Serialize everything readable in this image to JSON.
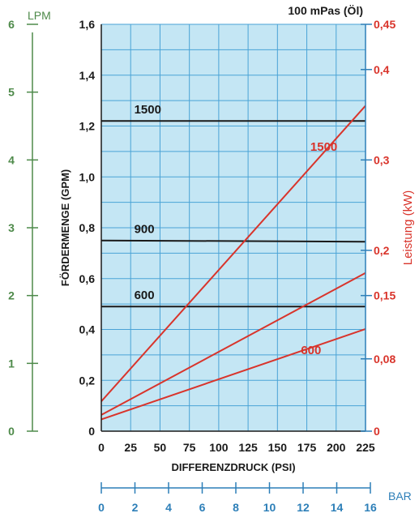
{
  "chart_data": {
    "type": "line",
    "title": "100 mPas (Öl)",
    "xlabel": "DIFFERENZDRUCK (PSI)",
    "ylabel": "FÖRDERMENGE (GPM)",
    "y2label": "Leistung (kW)",
    "lpm_label": "LPM",
    "bar_label": "BAR",
    "xlim": [
      0,
      225
    ],
    "ylim": [
      0,
      1.6
    ],
    "y2lim": [
      0,
      0.45
    ],
    "lpm_lim": [
      0,
      6
    ],
    "bar_lim": [
      0,
      16
    ],
    "x_ticks": [
      "0",
      "25",
      "50",
      "75",
      "100",
      "125",
      "150",
      "175",
      "200",
      "225"
    ],
    "x_tick_values": [
      0,
      25,
      50,
      75,
      100,
      125,
      150,
      175,
      200,
      225
    ],
    "y_ticks": [
      "0",
      "0,2",
      "0,4",
      "0,6",
      "0,8",
      "1,0",
      "1,2",
      "1,4",
      "1,6"
    ],
    "y_tick_values": [
      0,
      0.2,
      0.4,
      0.6,
      0.8,
      1.0,
      1.2,
      1.4,
      1.6
    ],
    "y2_ticks": [
      "0",
      "0,08",
      "0,15",
      "0,2",
      "0,3",
      "0,4",
      "0,45"
    ],
    "y2_tick_values": [
      0,
      0.08,
      0.15,
      0.2,
      0.3,
      0.4,
      0.45
    ],
    "lpm_ticks": [
      "0",
      "1",
      "2",
      "3",
      "4",
      "5",
      "6"
    ],
    "lpm_tick_values": [
      0,
      1,
      2,
      3,
      4,
      5,
      6
    ],
    "bar_ticks": [
      "0",
      "2",
      "4",
      "6",
      "8",
      "10",
      "12",
      "14",
      "16"
    ],
    "bar_tick_values": [
      0,
      2,
      4,
      6,
      8,
      10,
      12,
      14,
      16
    ],
    "grid": true,
    "colors": {
      "plot_bg": "#c4e6f4",
      "grid": "#4aa3d6",
      "flow": "#1a1a1a",
      "power": "#d9342b",
      "lpm": "#4e8a4a",
      "bar": "#2d7fb8"
    },
    "flow_series": [
      {
        "name": "1500",
        "x": [
          0,
          225
        ],
        "y": [
          1.22,
          1.22
        ]
      },
      {
        "name": "900",
        "x": [
          0,
          225
        ],
        "y": [
          0.75,
          0.745
        ]
      },
      {
        "name": "600",
        "x": [
          0,
          225
        ],
        "y": [
          0.49,
          0.49
        ]
      }
    ],
    "power_series": [
      {
        "name": "1500",
        "x": [
          0,
          225
        ],
        "y": [
          0.033,
          0.36
        ]
      },
      {
        "name": "",
        "x": [
          0,
          225
        ],
        "y": [
          0.018,
          0.175
        ]
      },
      {
        "name": "600",
        "x": [
          0,
          225
        ],
        "y": [
          0.013,
          0.113
        ]
      }
    ],
    "flow_labels": [
      {
        "text": "1500",
        "x": 28,
        "y": 1.25
      },
      {
        "text": "900",
        "x": 28,
        "y": 0.78
      },
      {
        "text": "600",
        "x": 28,
        "y": 0.52
      }
    ],
    "power_labels": [
      {
        "text": "1500",
        "x": 178,
        "y": 0.31
      },
      {
        "text": "600",
        "x": 170,
        "y": 0.085
      }
    ]
  }
}
